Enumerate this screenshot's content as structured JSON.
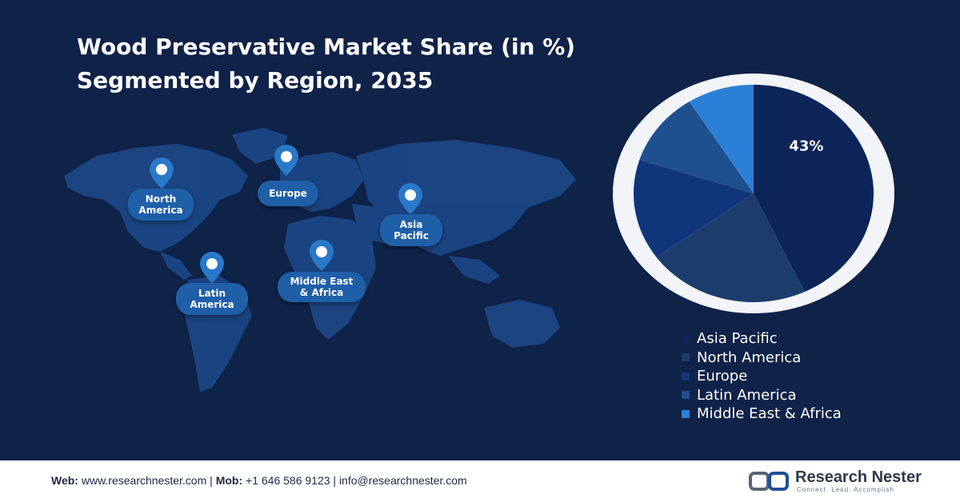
{
  "title_line1": "Wood Preservative Market Share (in %)",
  "title_line2": "Segmented by Region, 2035",
  "map_labels": {
    "north_america": [
      "North",
      "America"
    ],
    "europe": [
      "Europe"
    ],
    "asia_pacific": [
      "Asia",
      "Pacific"
    ],
    "latin_america": [
      "Latin",
      "America"
    ],
    "middle_east_africa": [
      "Middle East",
      "& Africa"
    ]
  },
  "chart_data": {
    "type": "pie",
    "title": "Wood Preservative Market Share (in %) Segmented by Region, 2035",
    "slices": [
      {
        "label": "Asia Pacific",
        "value": 43,
        "color": "#0c2458",
        "show_label": "43%"
      },
      {
        "label": "North America",
        "value": 22,
        "color": "#1c3c6c",
        "show_label": ""
      },
      {
        "label": "Europe",
        "value": 15,
        "color": "#11357a",
        "show_label": ""
      },
      {
        "label": "Latin America",
        "value": 11,
        "color": "#1e4f8e",
        "show_label": ""
      },
      {
        "label": "Middle East & Africa",
        "value": 9,
        "color": "#2c7fd6",
        "show_label": ""
      }
    ],
    "legend_position": "bottom-right"
  },
  "footer": {
    "web_label": "Web:",
    "web_value": "www.researchnester.com",
    "sep1": "|",
    "mob_label": "Mob:",
    "mob_value": "+1 646 586 9123",
    "sep2": "|",
    "email": "info@researchnester.com"
  },
  "logo": {
    "name": "Research Nester",
    "tagline": "Connect. Lead. Accomplish"
  }
}
